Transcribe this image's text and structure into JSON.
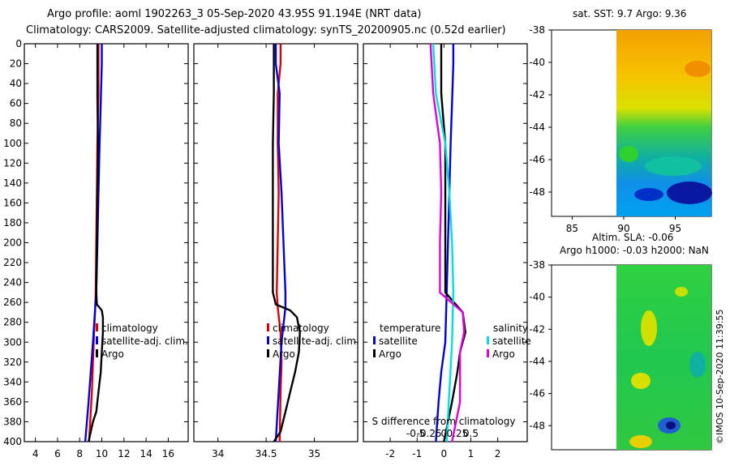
{
  "header": {
    "title_line1": "Argo profile: aoml 1902263_3 05-Sep-2020 43.95S 91.194E (NRT data)",
    "title_line2": "Climatology: CARS2009. Satellite-adjusted climatology: synTS_20200905.nc (0.52d earlier)"
  },
  "colors": {
    "climatology": "#e00000",
    "satellite": "#0000e0",
    "argo": "#000000",
    "sat_salinity": "#00e0e0",
    "argo_salinity": "#e000e0"
  },
  "chart_data": [
    {
      "id": "temperature",
      "type": "line",
      "xlabel": "",
      "ylabel": "",
      "xlim": [
        3,
        17.8
      ],
      "ylim": [
        400,
        0
      ],
      "x_ticks": [
        4,
        6,
        8,
        10,
        12,
        14,
        16
      ],
      "y_ticks": [
        0,
        20,
        40,
        60,
        80,
        100,
        120,
        140,
        160,
        180,
        200,
        220,
        240,
        260,
        280,
        300,
        320,
        340,
        360,
        380,
        400
      ],
      "legend": [
        "climatology",
        "satellite-adj. clim.",
        "Argo"
      ],
      "series": [
        {
          "name": "climatology",
          "color": "#e00000",
          "points": [
            [
              9.7,
              0
            ],
            [
              9.7,
              50
            ],
            [
              9.6,
              100
            ],
            [
              9.55,
              150
            ],
            [
              9.5,
              200
            ],
            [
              9.45,
              250
            ],
            [
              9.4,
              265
            ],
            [
              9.3,
              290
            ],
            [
              9.2,
              320
            ],
            [
              9.1,
              350
            ],
            [
              8.95,
              380
            ],
            [
              8.85,
              400
            ]
          ]
        },
        {
          "name": "satellite-adj. clim.",
          "color": "#0000e0",
          "points": [
            [
              10.0,
              0
            ],
            [
              10.0,
              20
            ],
            [
              9.9,
              60
            ],
            [
              9.8,
              100
            ],
            [
              9.7,
              150
            ],
            [
              9.6,
              200
            ],
            [
              9.5,
              250
            ],
            [
              9.4,
              265
            ],
            [
              9.2,
              300
            ],
            [
              9.0,
              330
            ],
            [
              8.8,
              360
            ],
            [
              8.5,
              400
            ]
          ]
        },
        {
          "name": "Argo",
          "color": "#000000",
          "points": [
            [
              9.6,
              0
            ],
            [
              9.6,
              55
            ],
            [
              9.65,
              100
            ],
            [
              9.6,
              150
            ],
            [
              9.55,
              200
            ],
            [
              9.5,
              250
            ],
            [
              9.55,
              262
            ],
            [
              10.0,
              268
            ],
            [
              10.1,
              275
            ],
            [
              10.1,
              290
            ],
            [
              10.0,
              310
            ],
            [
              9.9,
              330
            ],
            [
              9.7,
              350
            ],
            [
              9.5,
              370
            ],
            [
              9.2,
              380
            ],
            [
              9.0,
              390
            ],
            [
              8.8,
              400
            ]
          ]
        }
      ]
    },
    {
      "id": "salinity",
      "type": "line",
      "xlabel": "",
      "ylabel": "",
      "xlim": [
        33.75,
        35.45
      ],
      "ylim": [
        400,
        0
      ],
      "x_ticks": [
        34,
        34.5,
        35
      ],
      "legend": [
        "climatology",
        "satellite-adj. clim.",
        "Argo"
      ],
      "series": [
        {
          "name": "climatology",
          "color": "#e00000",
          "points": [
            [
              34.65,
              0
            ],
            [
              34.65,
              20
            ],
            [
              34.62,
              50
            ],
            [
              34.62,
              100
            ],
            [
              34.63,
              150
            ],
            [
              34.62,
              200
            ],
            [
              34.61,
              250
            ],
            [
              34.62,
              265
            ],
            [
              34.65,
              290
            ],
            [
              34.66,
              320
            ],
            [
              34.65,
              350
            ],
            [
              34.64,
              400
            ]
          ]
        },
        {
          "name": "satellite-adj. clim.",
          "color": "#0000e0",
          "points": [
            [
              34.6,
              0
            ],
            [
              34.6,
              20
            ],
            [
              34.64,
              50
            ],
            [
              34.63,
              100
            ],
            [
              34.66,
              150
            ],
            [
              34.68,
              200
            ],
            [
              34.7,
              250
            ],
            [
              34.7,
              265
            ],
            [
              34.66,
              300
            ],
            [
              34.63,
              350
            ],
            [
              34.6,
              400
            ]
          ]
        },
        {
          "name": "Argo",
          "color": "#000000",
          "points": [
            [
              34.58,
              0
            ],
            [
              34.58,
              50
            ],
            [
              34.57,
              100
            ],
            [
              34.57,
              150
            ],
            [
              34.57,
              200
            ],
            [
              34.57,
              250
            ],
            [
              34.6,
              262
            ],
            [
              34.75,
              268
            ],
            [
              34.82,
              275
            ],
            [
              34.85,
              290
            ],
            [
              34.84,
              310
            ],
            [
              34.8,
              330
            ],
            [
              34.75,
              350
            ],
            [
              34.7,
              370
            ],
            [
              34.65,
              390
            ],
            [
              34.58,
              400
            ]
          ]
        }
      ]
    },
    {
      "id": "difference",
      "type": "line",
      "xlabel": "S difference from climatology",
      "ylabel": "",
      "xlim": [
        -3,
        3.1
      ],
      "ylim": [
        400,
        0
      ],
      "x_ticks": [
        -2,
        -1,
        0,
        1,
        2
      ],
      "x2_ticks": [
        "-0.5",
        "-0.25",
        "0",
        "0.25",
        "0.5"
      ],
      "legend_temperature_title": "temperature",
      "legend_salinity_title": "salinity",
      "legend": [
        "satellite",
        "Argo",
        "satellite",
        "Argo"
      ],
      "series": [
        {
          "name": "temperature satellite",
          "color": "#0000e0",
          "points": [
            [
              0.35,
              0
            ],
            [
              0.35,
              20
            ],
            [
              0.3,
              60
            ],
            [
              0.25,
              100
            ],
            [
              0.2,
              150
            ],
            [
              0.15,
              200
            ],
            [
              0.1,
              250
            ],
            [
              0.05,
              300
            ],
            [
              -0.1,
              330
            ],
            [
              -0.2,
              360
            ],
            [
              -0.3,
              400
            ]
          ]
        },
        {
          "name": "temperature Argo",
          "color": "#000000",
          "points": [
            [
              -0.1,
              0
            ],
            [
              -0.1,
              50
            ],
            [
              0.05,
              100
            ],
            [
              0.05,
              150
            ],
            [
              0.05,
              200
            ],
            [
              0.05,
              250
            ],
            [
              0.7,
              270
            ],
            [
              0.8,
              290
            ],
            [
              0.6,
              310
            ],
            [
              0.5,
              330
            ],
            [
              0.3,
              360
            ],
            [
              0.0,
              400
            ]
          ]
        },
        {
          "name": "salinity satellite",
          "color": "#00e0e0",
          "points": [
            [
              -0.4,
              0
            ],
            [
              -0.3,
              50
            ],
            [
              0.05,
              100
            ],
            [
              0.2,
              150
            ],
            [
              0.3,
              200
            ],
            [
              0.35,
              250
            ],
            [
              0.3,
              300
            ],
            [
              0.2,
              350
            ],
            [
              0.1,
              400
            ]
          ]
        },
        {
          "name": "salinity Argo",
          "color": "#e000e0",
          "points": [
            [
              -0.5,
              0
            ],
            [
              -0.4,
              50
            ],
            [
              -0.15,
              100
            ],
            [
              -0.1,
              150
            ],
            [
              -0.15,
              200
            ],
            [
              -0.15,
              250
            ],
            [
              0.7,
              270
            ],
            [
              0.75,
              290
            ],
            [
              0.6,
              310
            ],
            [
              0.6,
              330
            ],
            [
              0.6,
              360
            ],
            [
              0.3,
              400
            ]
          ]
        }
      ]
    },
    {
      "id": "sst_map",
      "type": "heatmap",
      "title": "sat. SST: 9.7 Argo: 9.36",
      "xlim": [
        83,
        98.5
      ],
      "ylim": [
        -49.5,
        -38
      ],
      "x_ticks": [
        85,
        90,
        95
      ],
      "y_ticks": [
        -38,
        -40,
        -42,
        -44,
        -46,
        -48
      ]
    },
    {
      "id": "sla_map",
      "type": "heatmap",
      "title": "Altim. SLA: -0.06",
      "subtitle": "Argo h1000: -0.03 h2000: NaN",
      "xlim": [
        83,
        98.5
      ],
      "ylim": [
        -49.5,
        -38
      ],
      "y_ticks": [
        -38,
        -40,
        -42,
        -44,
        -46,
        -48
      ]
    }
  ],
  "credit": "©IMOS 10-Sep-2020 11:39:55"
}
